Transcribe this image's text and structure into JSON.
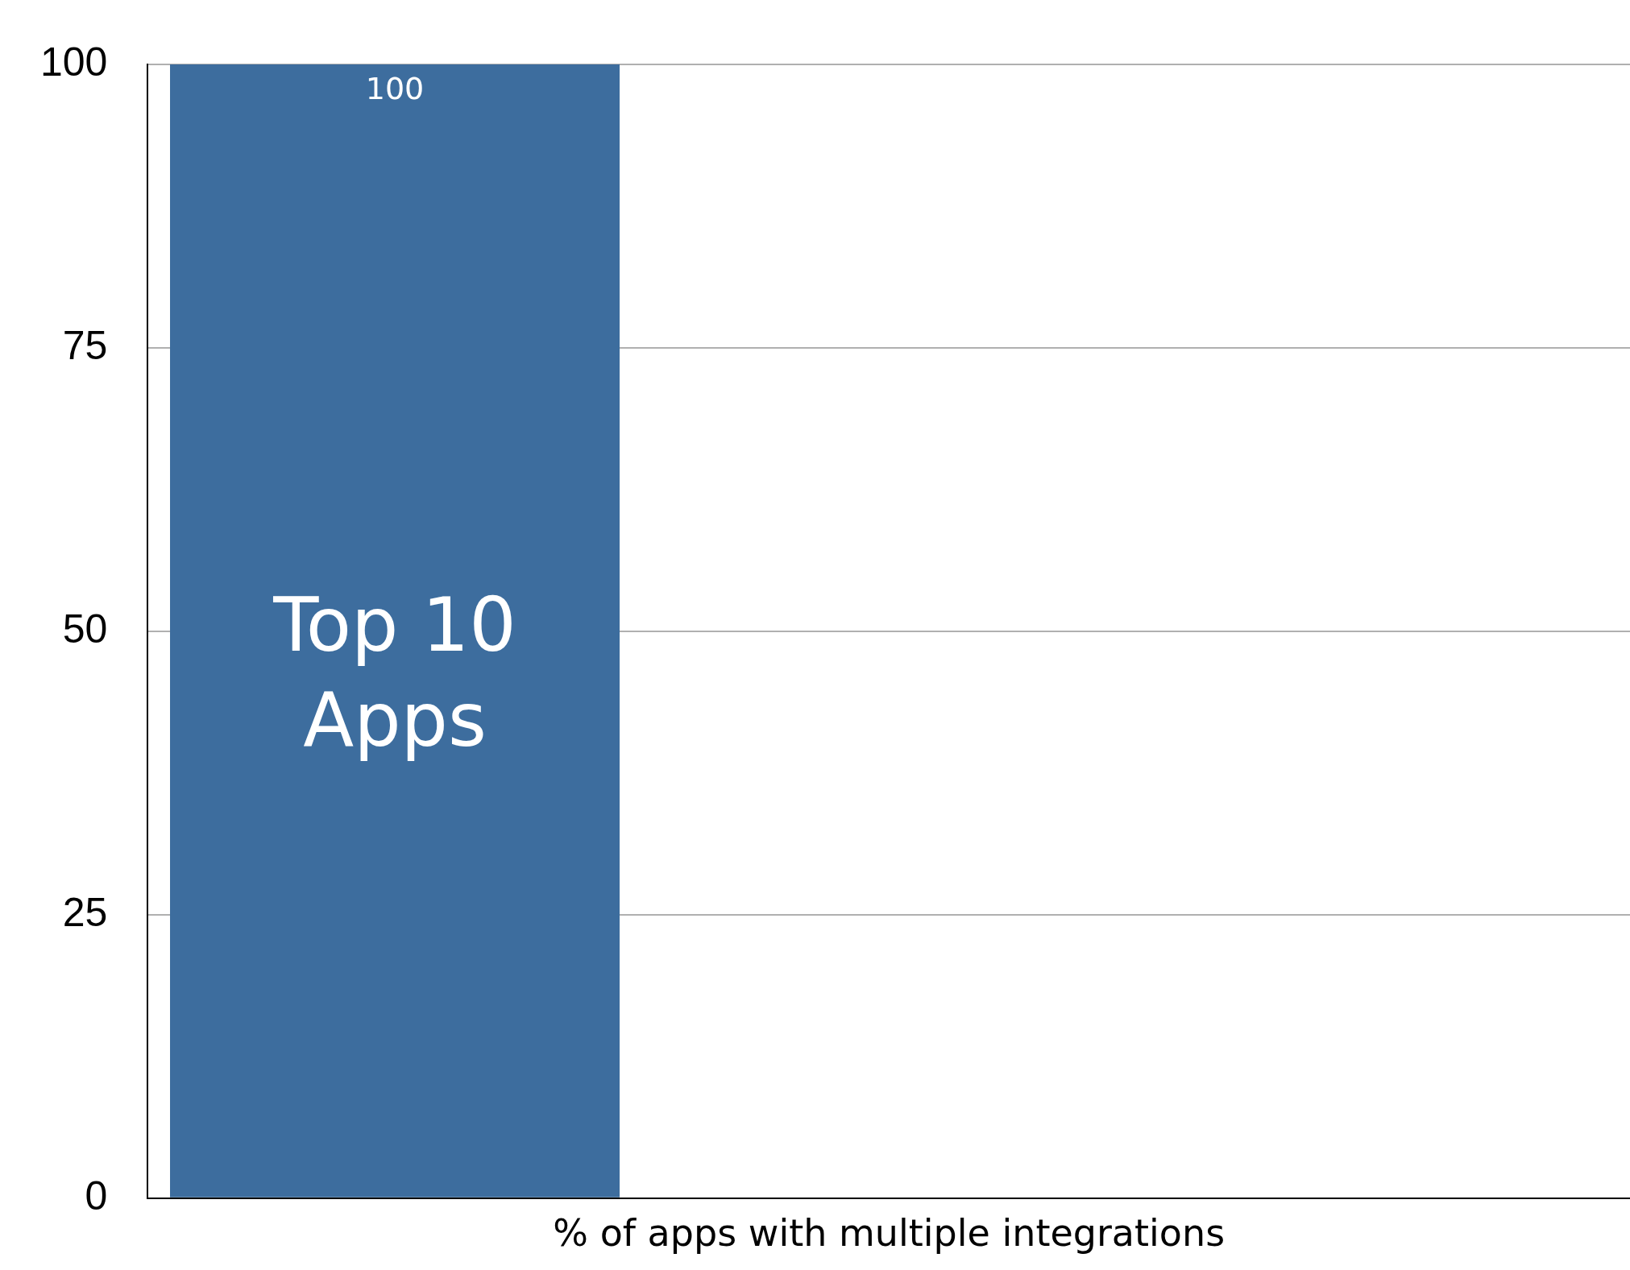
{
  "chart_data": {
    "type": "bar",
    "xlabel": "% of apps with multiple integrations",
    "categories": [
      "Top 10 Apps",
      null,
      null
    ],
    "values": [
      100,
      null,
      null
    ],
    "color": "#3d6d9e",
    "ylim": [
      0,
      100
    ],
    "yticks": [
      0,
      25,
      50,
      75,
      100
    ],
    "grid": "y",
    "data_labels": true,
    "legend": false,
    "tick_labels": "y"
  }
}
